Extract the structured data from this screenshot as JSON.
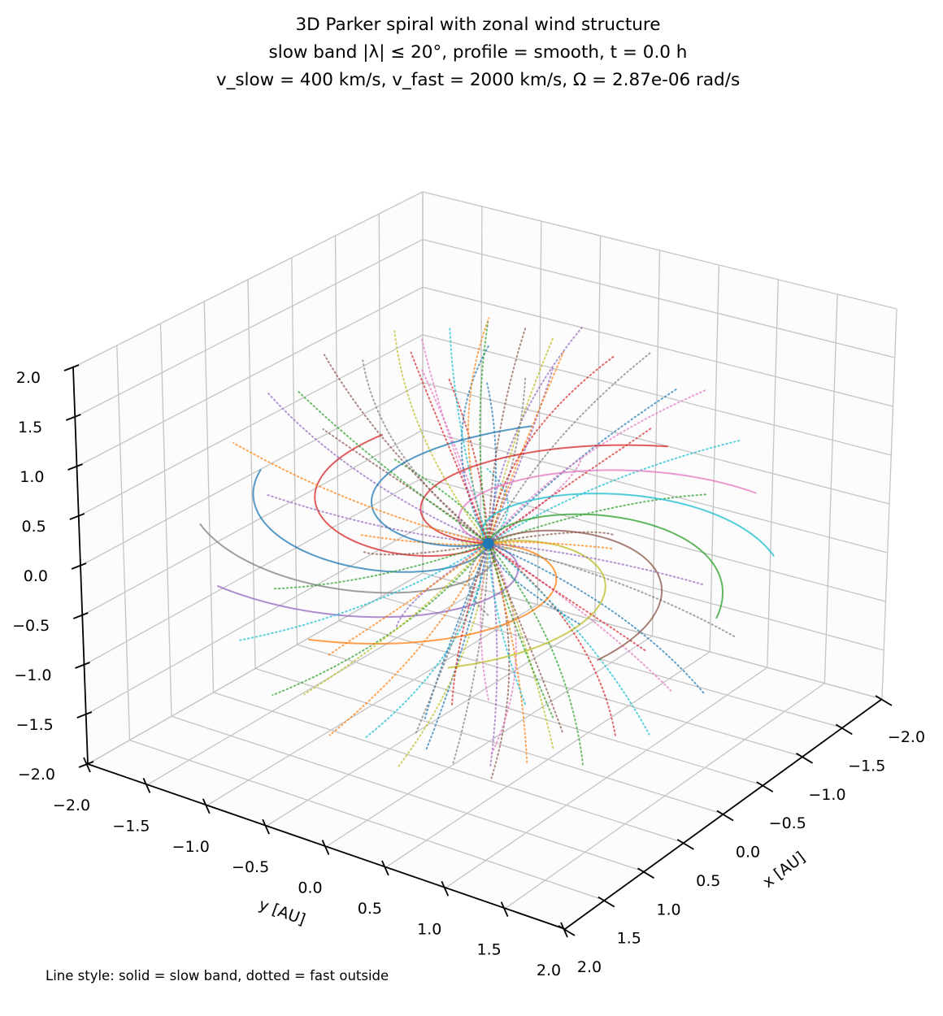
{
  "chart_data": {
    "type": "line3d",
    "title": [
      "3D Parker spiral with zonal wind structure",
      "slow band |λ| ≤ 20°, profile = smooth, t = 0.0 h",
      "v_slow = 400 km/s, v_fast = 2000 km/s, Ω = 2.87e-06 rad/s"
    ],
    "xlabel": "x [AU]",
    "ylabel": "y [AU]",
    "xlim": [
      -2,
      2
    ],
    "ylim": [
      -2,
      2
    ],
    "zlim": [
      -2,
      2
    ],
    "xticks": [
      "−2.0",
      "−1.5",
      "−1.0",
      "−0.5",
      "0.0",
      "0.5",
      "1.0",
      "1.5",
      "2.0"
    ],
    "yticks": [
      "−2.0",
      "−1.5",
      "−1.0",
      "−0.5",
      "0.0",
      "0.5",
      "1.0",
      "1.5",
      "2.0"
    ],
    "zticks": [
      "−2.0",
      "−1.5",
      "−1.0",
      "−0.5",
      "0.0",
      "0.5",
      "1.0",
      "1.5",
      "2.0"
    ],
    "grid": true,
    "params": {
      "v_slow_km_s": 400,
      "v_fast_km_s": 2000,
      "omega_rad_s": 2.87e-06,
      "slow_band_deg": 20,
      "r_max_AU": 2.0
    },
    "field_line_longitudes_deg": [
      0,
      30,
      60,
      90,
      120,
      150,
      180,
      210,
      240,
      270,
      300,
      330
    ],
    "field_line_latitudes_deg": [
      -75,
      -50,
      -30,
      0,
      30,
      50,
      75
    ],
    "line_styles": {
      "slow": "solid",
      "fast": "dotted"
    },
    "colors": [
      "#1f77b4",
      "#ff7f0e",
      "#2ca02c",
      "#d62728",
      "#9467bd",
      "#8c564b",
      "#e377c2",
      "#7f7f7f",
      "#bcbd22",
      "#17becf"
    ],
    "sun_color": "#1f77b4",
    "note": "Line style: solid = slow band, dotted = fast outside"
  }
}
